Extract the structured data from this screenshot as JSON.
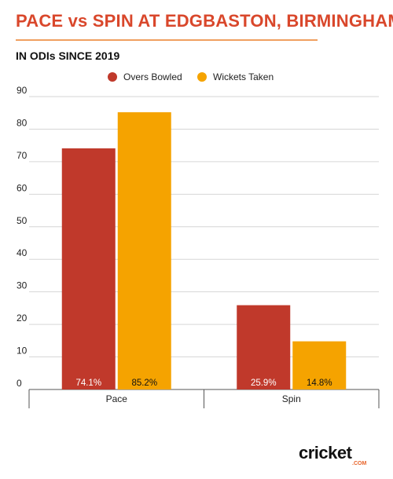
{
  "title": "PACE vs SPIN AT EDGBASTON, BIRMINGHAM",
  "subtitle": "IN ODIs SINCE 2019",
  "logo": {
    "text": "cricket",
    "sub": ".COM"
  },
  "colors": {
    "title": "#d9472b",
    "overs": "#c0392b",
    "wickets": "#f5a300"
  },
  "chart_data": {
    "type": "bar",
    "categories": [
      "Pace",
      "Spin"
    ],
    "series": [
      {
        "name": "Overs Bowled",
        "values": [
          74.1,
          25.9
        ],
        "labels": [
          "74.1%",
          "25.9%"
        ]
      },
      {
        "name": "Wickets Taken",
        "values": [
          85.2,
          14.8
        ],
        "labels": [
          "85.2%",
          "14.8%"
        ]
      }
    ],
    "yticks": [
      0,
      10,
      20,
      30,
      40,
      50,
      60,
      70,
      80,
      90
    ],
    "ylim": [
      0,
      90
    ],
    "legend": "top-center",
    "grid": true
  }
}
